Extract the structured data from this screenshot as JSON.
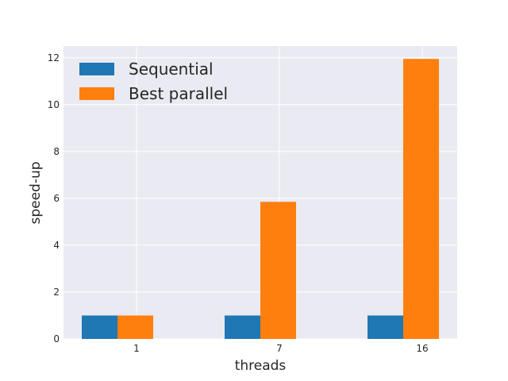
{
  "chart_data": {
    "type": "bar",
    "categories": [
      "1",
      "7",
      "16"
    ],
    "series": [
      {
        "name": "Sequential",
        "values": [
          1.0,
          1.0,
          1.0
        ],
        "color": "#1f77b4"
      },
      {
        "name": "Best parallel",
        "values": [
          1.0,
          5.85,
          11.95
        ],
        "color": "#ff7f0e"
      }
    ],
    "xlabel": "threads",
    "ylabel": "speed-up",
    "ylim": [
      0,
      12.5
    ],
    "yticks": [
      0,
      2,
      4,
      6,
      8,
      10,
      12
    ],
    "grid": true,
    "legend_position": "top-left",
    "background_color": "#eaeaf2",
    "grid_color": "#ffffff"
  }
}
